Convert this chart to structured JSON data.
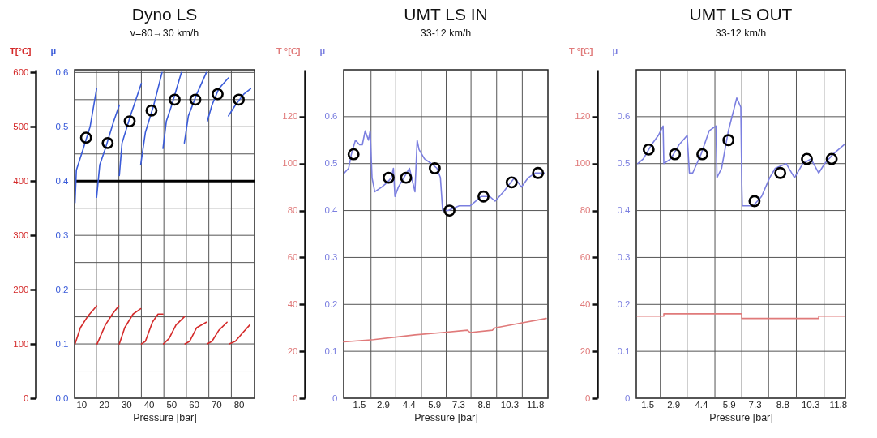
{
  "chart_data": [
    {
      "type": "line",
      "title": "Dyno LS",
      "subtitle": "v=80→30 km/h",
      "xlabel": "Pressure [bar]",
      "ylabel": "T[°C]",
      "y2label": "μ",
      "xlim": [
        7,
        87
      ],
      "xticks": [
        10,
        {
          "value": 16.7,
          "label": null
        },
        20,
        {
          "value": 26.7,
          "label": null
        },
        30,
        {
          "value": 36.7,
          "label": null
        },
        40,
        {
          "value": 46.7,
          "label": null
        },
        50,
        {
          "value": 56.7,
          "label": null
        },
        60,
        {
          "value": 66.7,
          "label": null
        },
        70,
        {
          "value": 76.7,
          "label": null
        },
        80
      ],
      "ylim": [
        0,
        605
      ],
      "yticks": [
        0,
        100,
        200,
        300,
        400,
        500,
        600
      ],
      "y2lim": [
        0,
        0.605
      ],
      "y2ticks": [
        {
          "value": 0,
          "label": "0.0"
        },
        {
          "value": 0.05,
          "label": null
        },
        0.1,
        {
          "value": 0.15,
          "label": null
        },
        0.2,
        {
          "value": 0.25,
          "label": null
        },
        0.3,
        {
          "value": 0.35,
          "label": null
        },
        0.4,
        {
          "value": 0.45,
          "label": null
        },
        0.5,
        {
          "value": 0.55,
          "label": null
        },
        0.6
      ],
      "grid": true,
      "ref_lines": [
        {
          "axis": "y2",
          "value": 0.4,
          "color": "#000000"
        }
      ],
      "series": [
        {
          "type": "line",
          "color": "#d42a2a",
          "x": [
            7.2,
            9.6,
            12.7,
            16.8
          ],
          "values": [
            100,
            130,
            150,
            170
          ]
        },
        {
          "type": "line",
          "color": "#d42a2a",
          "x": [
            17,
            20.7,
            23.8,
            26.6
          ],
          "values": [
            100,
            135,
            155,
            170
          ]
        },
        {
          "type": "line",
          "color": "#d42a2a",
          "x": [
            26.9,
            29.3,
            33,
            36.4
          ],
          "values": [
            100,
            130,
            155,
            165
          ]
        },
        {
          "type": "line",
          "color": "#d42a2a",
          "x": [
            36.7,
            38.5,
            41.6,
            44.1,
            46.3
          ],
          "values": [
            100,
            105,
            140,
            155,
            155
          ]
        },
        {
          "type": "line",
          "color": "#d42a2a",
          "x": [
            46.5,
            49,
            52.1,
            55.8
          ],
          "values": [
            100,
            110,
            135,
            150
          ]
        },
        {
          "type": "line",
          "color": "#d42a2a",
          "x": [
            56.1,
            58.2,
            61.3,
            65.6
          ],
          "values": [
            100,
            105,
            130,
            140
          ]
        },
        {
          "type": "line",
          "color": "#d42a2a",
          "x": [
            66,
            68.1,
            71.1,
            74.8
          ],
          "values": [
            100,
            105,
            125,
            140
          ]
        },
        {
          "type": "line",
          "color": "#d42a2a",
          "x": [
            75.8,
            78.5,
            81.6,
            84.9
          ],
          "values": [
            100,
            105,
            120,
            135
          ]
        },
        {
          "type": "line",
          "axis": "y2",
          "color": "#3a5bd9",
          "x": [
            7.2,
            7.8,
            10.9,
            13.9,
            16.8
          ],
          "values": [
            0.36,
            0.42,
            0.46,
            0.5,
            0.57
          ]
        },
        {
          "type": "line",
          "axis": "y2",
          "color": "#3a5bd9",
          "x": [
            16.8,
            18.2,
            20.7,
            24.4,
            26.9
          ],
          "values": [
            0.37,
            0.43,
            0.46,
            0.51,
            0.54
          ]
        },
        {
          "type": "line",
          "axis": "y2",
          "color": "#3a5bd9",
          "x": [
            26.9,
            28.1,
            31.8,
            36.7
          ],
          "values": [
            0.41,
            0.47,
            0.52,
            0.58
          ]
        },
        {
          "type": "line",
          "axis": "y2",
          "color": "#3a5bd9",
          "x": [
            36.4,
            38.5,
            42.2,
            45.9
          ],
          "values": [
            0.43,
            0.49,
            0.54,
            0.6
          ]
        },
        {
          "type": "line",
          "axis": "y2",
          "color": "#3a5bd9",
          "x": [
            46.3,
            47.8,
            50.2,
            54.5
          ],
          "values": [
            0.46,
            0.51,
            0.54,
            0.6
          ]
        },
        {
          "type": "line",
          "axis": "y2",
          "color": "#3a5bd9",
          "x": [
            55.8,
            57.6,
            61.3,
            65.6
          ],
          "values": [
            0.47,
            0.52,
            0.56,
            0.6
          ]
        },
        {
          "type": "line",
          "axis": "y2",
          "color": "#3a5bd9",
          "x": [
            66,
            68.1,
            71.1,
            75.4
          ],
          "values": [
            0.51,
            0.54,
            0.57,
            0.59
          ]
        },
        {
          "type": "line",
          "axis": "y2",
          "color": "#3a5bd9",
          "x": [
            75.4,
            78.5,
            82.2,
            85.3
          ],
          "values": [
            0.52,
            0.54,
            0.56,
            0.57
          ]
        },
        {
          "type": "scatter",
          "axis": "y2",
          "color": "#000000",
          "marker": "circle",
          "x": [
            12.1,
            21.7,
            31.5,
            41.2,
            51.5,
            60.7,
            70.6,
            80
          ],
          "values": [
            0.48,
            0.47,
            0.51,
            0.53,
            0.55,
            0.55,
            0.56,
            0.55
          ]
        }
      ]
    },
    {
      "type": "line",
      "title": "UMT LS IN",
      "subtitle": "33-12 km/h",
      "xlabel": "Pressure [bar]",
      "ylabel": "T °[C]",
      "y2label": "μ",
      "xlim": [
        0.6,
        12.55
      ],
      "xticks": [
        1.5,
        {
          "value": 2.2,
          "label": null
        },
        2.9,
        {
          "value": 3.65,
          "label": null
        },
        4.4,
        {
          "value": 5.15,
          "label": null
        },
        5.9,
        {
          "value": 6.6,
          "label": null
        },
        7.3,
        {
          "value": 8.05,
          "label": null
        },
        8.8,
        {
          "value": 9.55,
          "label": null
        },
        10.3,
        {
          "value": 11.05,
          "label": null
        },
        11.8
      ],
      "ylim": [
        0,
        140
      ],
      "yticks": [
        0,
        20,
        40,
        60,
        80,
        100,
        120
      ],
      "y2lim": [
        0,
        0.7
      ],
      "y2ticks": [
        0,
        0.1,
        0.2,
        0.3,
        0.4,
        0.5,
        0.6
      ],
      "grid": true,
      "series": [
        {
          "type": "line",
          "color": "#e07a7a",
          "x": [
            0.6,
            2.34,
            4.77,
            6.39,
            7.84,
            8.0,
            9.3,
            9.46,
            10.92,
            12.45
          ],
          "values": [
            24,
            25,
            27,
            28,
            29,
            28,
            29,
            30,
            32,
            34
          ]
        },
        {
          "type": "line",
          "axis": "y2",
          "color": "#7b7fe0",
          "x": [
            0.64,
            0.89,
            1.05,
            1.29,
            1.53,
            1.69,
            1.86,
            2.05,
            2.15,
            2.26,
            2.42,
            2.83,
            3.15,
            3.39,
            3.51,
            3.6,
            3.8,
            4.12,
            4.45,
            4.77,
            4.9,
            5.01,
            5.33,
            5.74,
            6.06,
            6.26,
            6.39,
            6.71,
            7.36,
            8.0,
            8.65,
            9.14,
            9.46,
            9.95,
            10.6,
            11.0,
            11.4,
            11.8,
            12.37
          ],
          "values": [
            0.48,
            0.49,
            0.52,
            0.55,
            0.54,
            0.54,
            0.57,
            0.55,
            0.57,
            0.47,
            0.44,
            0.45,
            0.46,
            0.47,
            0.49,
            0.43,
            0.45,
            0.47,
            0.49,
            0.44,
            0.55,
            0.53,
            0.51,
            0.5,
            0.49,
            0.47,
            0.4,
            0.4,
            0.41,
            0.41,
            0.43,
            0.43,
            0.42,
            0.44,
            0.47,
            0.45,
            0.47,
            0.48,
            0.48
          ]
        },
        {
          "type": "scatter",
          "axis": "y2",
          "color": "#000000",
          "marker": "circle",
          "x": [
            1.18,
            3.23,
            4.25,
            5.93,
            6.79,
            8.78,
            10.43,
            11.97
          ],
          "values": [
            0.52,
            0.47,
            0.47,
            0.49,
            0.4,
            0.43,
            0.46,
            0.48
          ]
        }
      ]
    },
    {
      "type": "line",
      "title": "UMT LS OUT",
      "subtitle": "33-12 km/h",
      "xlabel": "Pressure [bar]",
      "ylabel": "T °[C]",
      "y2label": "μ",
      "xlim": [
        0.9,
        12.2
      ],
      "xticks": [
        1.5,
        {
          "value": 2.2,
          "label": null
        },
        2.9,
        {
          "value": 3.65,
          "label": null
        },
        4.4,
        {
          "value": 5.15,
          "label": null
        },
        5.9,
        {
          "value": 6.6,
          "label": null
        },
        7.3,
        {
          "value": 8.05,
          "label": null
        },
        8.8,
        {
          "value": 9.55,
          "label": null
        },
        10.3,
        {
          "value": 11.05,
          "label": null
        },
        11.8
      ],
      "ylim": [
        0,
        140
      ],
      "yticks": [
        0,
        20,
        40,
        60,
        80,
        100,
        120
      ],
      "y2lim": [
        0,
        0.7
      ],
      "y2ticks": [
        0,
        0.1,
        0.2,
        0.3,
        0.4,
        0.5,
        0.6
      ],
      "grid": true,
      "series": [
        {
          "type": "line",
          "color": "#e07a7a",
          "x": [
            0.95,
            2.39,
            2.39,
            6.6,
            6.6,
            10.76,
            10.76,
            12.15
          ],
          "values": [
            35,
            35,
            36,
            36,
            34,
            34,
            35,
            35
          ]
        },
        {
          "type": "line",
          "axis": "y2",
          "color": "#7b7fe0",
          "x": [
            0.98,
            1.28,
            1.72,
            2.09,
            2.35,
            2.39,
            2.76,
            3.21,
            3.65,
            3.77,
            3.95,
            4.4,
            4.84,
            5.21,
            5.26,
            5.51,
            5.88,
            6.33,
            6.55,
            6.6,
            6.63,
            7.22,
            7.67,
            8.11,
            8.41,
            9.0,
            9.45,
            9.9,
            10.34,
            10.76,
            11.08,
            11.53,
            12.12
          ],
          "values": [
            0.5,
            0.51,
            0.54,
            0.56,
            0.58,
            0.5,
            0.51,
            0.54,
            0.56,
            0.48,
            0.48,
            0.52,
            0.57,
            0.58,
            0.47,
            0.49,
            0.57,
            0.64,
            0.62,
            0.46,
            0.41,
            0.41,
            0.43,
            0.47,
            0.49,
            0.5,
            0.47,
            0.5,
            0.51,
            0.48,
            0.5,
            0.52,
            0.54
          ]
        },
        {
          "type": "scatter",
          "axis": "y2",
          "color": "#000000",
          "marker": "circle",
          "x": [
            1.57,
            2.99,
            4.47,
            5.88,
            7.29,
            8.68,
            10.12,
            11.46
          ],
          "values": [
            0.53,
            0.52,
            0.52,
            0.55,
            0.42,
            0.48,
            0.51,
            0.51
          ]
        }
      ]
    }
  ]
}
